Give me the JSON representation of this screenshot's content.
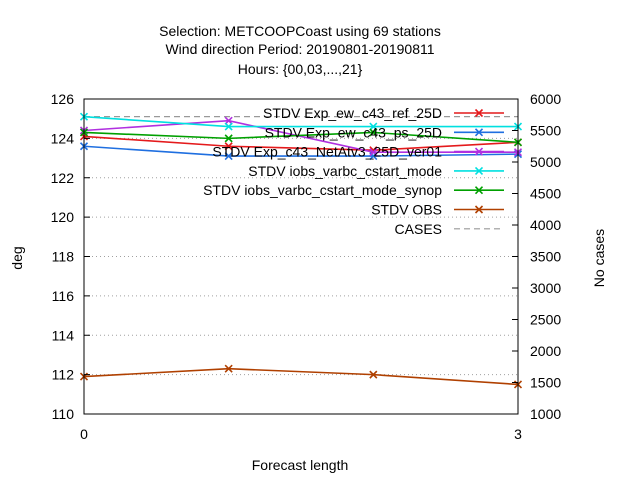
{
  "chart_data": {
    "type": "line",
    "title_lines": [
      "Selection: METCOOPCoast using    69 stations",
      "Wind direction    Period: 20190801-20190811",
      "Hours: {00,03,...,21}"
    ],
    "xlabel": "Forecast length",
    "ylabel": "deg",
    "y2label": "No cases",
    "xlim": [
      0,
      3
    ],
    "ylim": [
      110,
      126
    ],
    "y2lim": [
      1000,
      6000
    ],
    "x_ticks": [
      0,
      3
    ],
    "y_ticks": [
      110,
      112,
      114,
      116,
      118,
      120,
      122,
      124,
      126
    ],
    "y2_ticks": [
      1000,
      1500,
      2000,
      2500,
      3000,
      3500,
      4000,
      4500,
      5000,
      5500,
      6000
    ],
    "grid": true,
    "legend_position": "top-right",
    "x": [
      0,
      1,
      2,
      3
    ],
    "series": [
      {
        "name": "STDV Exp_ew_c43_ref_25D",
        "color": "#e41a1c",
        "marker": "x",
        "axis": "y",
        "values": [
          124.1,
          123.6,
          123.4,
          123.8
        ]
      },
      {
        "name": "STDV Exp_ew_c43_ps_25D",
        "color": "#1f6fe0",
        "marker": "x",
        "axis": "y",
        "values": [
          123.6,
          123.1,
          123.1,
          123.2
        ]
      },
      {
        "name": "STDV Exp_c43_NetAtv3_25D_ver01",
        "color": "#b030e0",
        "marker": "x",
        "axis": "y",
        "values": [
          124.4,
          124.9,
          123.3,
          123.3
        ]
      },
      {
        "name": "STDV iobs_varbc_cstart_mode",
        "color": "#00e0e0",
        "marker": "x",
        "axis": "y",
        "values": [
          125.1,
          124.6,
          124.6,
          124.6
        ]
      },
      {
        "name": "STDV iobs_varbc_cstart_mode_synop",
        "color": "#00a000",
        "marker": "x",
        "axis": "y",
        "values": [
          124.3,
          124.0,
          124.3,
          123.8
        ]
      },
      {
        "name": "STDV OBS",
        "color": "#b04000",
        "marker": "x",
        "axis": "y",
        "values": [
          111.9,
          112.3,
          112.0,
          111.5
        ]
      },
      {
        "name": "CASES",
        "color": "#999999",
        "marker": "none",
        "dashed": true,
        "axis": "y2",
        "values": [
          5720,
          5720,
          5720,
          5720
        ]
      }
    ]
  }
}
